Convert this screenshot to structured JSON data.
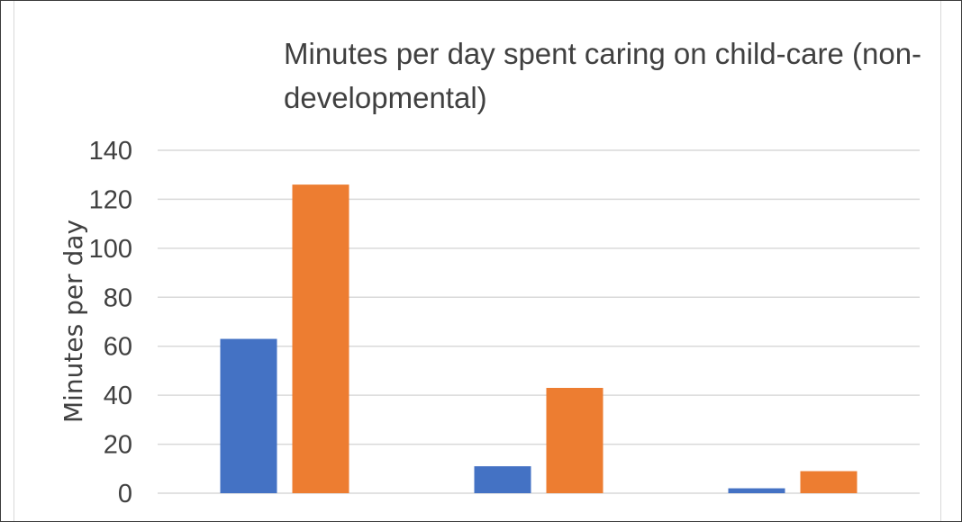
{
  "chart_data": {
    "type": "bar",
    "title_lines": [
      "Minutes per day spent caring on child-care (non-",
      "developmental)"
    ],
    "ylabel": "Minutes per day",
    "xlabel": "",
    "ylim": [
      0,
      140
    ],
    "y_ticks": [
      0,
      20,
      40,
      60,
      80,
      100,
      120,
      140
    ],
    "y_tick_labels": [
      "0",
      "20",
      "40",
      "60",
      "80",
      "100",
      "120",
      "140"
    ],
    "grid": true,
    "categories": [
      "",
      "",
      ""
    ],
    "series": [
      {
        "values": [
          63,
          11,
          2
        ],
        "color": "#4472C4"
      },
      {
        "values": [
          126,
          43,
          9
        ],
        "color": "#ED7D31"
      }
    ]
  }
}
